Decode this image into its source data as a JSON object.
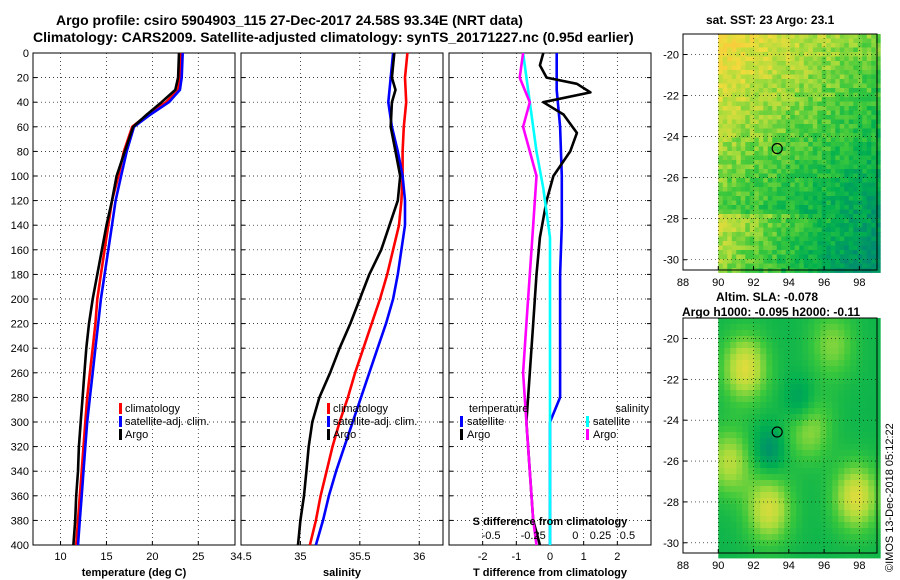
{
  "header": {
    "title_line1": "Argo profile: csiro 5904903_115 27-Dec-2017 24.58S 93.34E (NRT data)",
    "title_line2": "Climatology: CARS2009. Satellite-adjusted climatology: synTS_20171227.nc (0.95d earlier)"
  },
  "colors": {
    "climatology": "#ff0000",
    "satellite": "#0000ff",
    "argo": "#000000",
    "sal_satellite": "#00ffff",
    "sal_argo": "#ff00ff"
  },
  "chart_data": [
    {
      "id": "temperature",
      "type": "line",
      "xlabel": "temperature (deg C)",
      "xlim": [
        7,
        29
      ],
      "xticks": [
        10,
        15,
        20,
        25
      ],
      "xtick_labels": [
        "10",
        "15",
        "20",
        "25"
      ],
      "ylim": [
        0,
        400
      ],
      "yticks": [
        0,
        20,
        40,
        60,
        80,
        100,
        120,
        140,
        160,
        180,
        200,
        220,
        240,
        260,
        280,
        300,
        320,
        340,
        360,
        380,
        400
      ],
      "grid": true,
      "legend": [
        "climatology",
        "satellite-adj. clim.",
        "Argo"
      ],
      "legend_placement": "bottom-right",
      "series": [
        {
          "name": "climatology",
          "color_key": "climatology",
          "points": [
            [
              23.1,
              0
            ],
            [
              23.0,
              20
            ],
            [
              22.8,
              30
            ],
            [
              21.5,
              40
            ],
            [
              19.5,
              50
            ],
            [
              17.8,
              60
            ],
            [
              16.9,
              80
            ],
            [
              16.3,
              100
            ],
            [
              15.6,
              120
            ],
            [
              15.2,
              140
            ],
            [
              14.8,
              160
            ],
            [
              14.4,
              180
            ],
            [
              14.0,
              200
            ],
            [
              13.8,
              220
            ],
            [
              13.5,
              240
            ],
            [
              13.2,
              260
            ],
            [
              12.9,
              280
            ],
            [
              12.7,
              300
            ],
            [
              12.5,
              320
            ],
            [
              12.3,
              340
            ],
            [
              12.1,
              360
            ],
            [
              11.9,
              380
            ],
            [
              11.7,
              400
            ]
          ]
        },
        {
          "name": "satellite-adj. clim.",
          "color_key": "satellite",
          "points": [
            [
              23.3,
              0
            ],
            [
              23.2,
              20
            ],
            [
              23.0,
              30
            ],
            [
              21.8,
              40
            ],
            [
              19.8,
              50
            ],
            [
              18.0,
              60
            ],
            [
              17.2,
              80
            ],
            [
              16.6,
              100
            ],
            [
              16.0,
              120
            ],
            [
              15.6,
              140
            ],
            [
              15.2,
              160
            ],
            [
              14.8,
              180
            ],
            [
              14.4,
              200
            ],
            [
              14.1,
              220
            ],
            [
              13.8,
              240
            ],
            [
              13.5,
              260
            ],
            [
              13.2,
              280
            ],
            [
              12.9,
              300
            ],
            [
              12.7,
              320
            ],
            [
              12.5,
              340
            ],
            [
              12.3,
              360
            ],
            [
              12.1,
              380
            ],
            [
              11.9,
              400
            ]
          ]
        },
        {
          "name": "Argo",
          "color_key": "argo",
          "points": [
            [
              22.9,
              0
            ],
            [
              22.8,
              20
            ],
            [
              22.5,
              30
            ],
            [
              21.0,
              40
            ],
            [
              19.4,
              50
            ],
            [
              17.9,
              60
            ],
            [
              17.0,
              80
            ],
            [
              16.1,
              100
            ],
            [
              15.6,
              120
            ],
            [
              15.0,
              140
            ],
            [
              14.5,
              160
            ],
            [
              14.0,
              180
            ],
            [
              13.5,
              200
            ],
            [
              13.1,
              220
            ],
            [
              12.8,
              240
            ],
            [
              12.6,
              260
            ],
            [
              12.4,
              280
            ],
            [
              12.2,
              300
            ],
            [
              12.0,
              320
            ],
            [
              11.9,
              340
            ],
            [
              11.7,
              360
            ],
            [
              11.6,
              380
            ],
            [
              11.4,
              400
            ]
          ]
        }
      ]
    },
    {
      "id": "salinity",
      "type": "line",
      "xlabel": "salinity",
      "xlim": [
        34.5,
        36.2
      ],
      "xticks": [
        34.5,
        35,
        35.5,
        36
      ],
      "xtick_labels": [
        "34.5",
        "35",
        "35.5",
        "36"
      ],
      "ylim": [
        0,
        400
      ],
      "yticks": [
        0,
        20,
        40,
        60,
        80,
        100,
        120,
        140,
        160,
        180,
        200,
        220,
        240,
        260,
        280,
        300,
        320,
        340,
        360,
        380,
        400
      ],
      "grid": true,
      "legend": [
        "climatology",
        "satellite-adj. clim.",
        "Argo"
      ],
      "legend_placement": "bottom-right",
      "series": [
        {
          "name": "climatology",
          "color_key": "climatology",
          "points": [
            [
              35.9,
              0
            ],
            [
              35.88,
              20
            ],
            [
              35.89,
              40
            ],
            [
              35.87,
              60
            ],
            [
              35.86,
              80
            ],
            [
              35.86,
              100
            ],
            [
              35.85,
              120
            ],
            [
              35.83,
              140
            ],
            [
              35.78,
              160
            ],
            [
              35.73,
              180
            ],
            [
              35.67,
              200
            ],
            [
              35.6,
              220
            ],
            [
              35.53,
              240
            ],
            [
              35.46,
              260
            ],
            [
              35.4,
              280
            ],
            [
              35.33,
              300
            ],
            [
              35.27,
              320
            ],
            [
              35.22,
              340
            ],
            [
              35.17,
              360
            ],
            [
              35.13,
              380
            ],
            [
              35.08,
              400
            ]
          ]
        },
        {
          "name": "satellite-adj. clim.",
          "color_key": "satellite",
          "points": [
            [
              35.78,
              0
            ],
            [
              35.76,
              20
            ],
            [
              35.74,
              40
            ],
            [
              35.77,
              60
            ],
            [
              35.82,
              80
            ],
            [
              35.86,
              100
            ],
            [
              35.88,
              120
            ],
            [
              35.88,
              140
            ],
            [
              35.85,
              160
            ],
            [
              35.82,
              180
            ],
            [
              35.78,
              200
            ],
            [
              35.72,
              220
            ],
            [
              35.65,
              240
            ],
            [
              35.58,
              260
            ],
            [
              35.51,
              280
            ],
            [
              35.44,
              300
            ],
            [
              35.37,
              320
            ],
            [
              35.3,
              340
            ],
            [
              35.24,
              360
            ],
            [
              35.19,
              380
            ],
            [
              35.13,
              400
            ]
          ]
        },
        {
          "name": "Argo",
          "color_key": "argo",
          "points": [
            [
              35.79,
              0
            ],
            [
              35.77,
              20
            ],
            [
              35.8,
              30
            ],
            [
              35.77,
              40
            ],
            [
              35.76,
              60
            ],
            [
              35.8,
              80
            ],
            [
              35.84,
              100
            ],
            [
              35.82,
              120
            ],
            [
              35.75,
              140
            ],
            [
              35.68,
              160
            ],
            [
              35.58,
              180
            ],
            [
              35.5,
              200
            ],
            [
              35.42,
              220
            ],
            [
              35.33,
              240
            ],
            [
              35.25,
              260
            ],
            [
              35.16,
              280
            ],
            [
              35.1,
              300
            ],
            [
              35.07,
              320
            ],
            [
              35.05,
              340
            ],
            [
              35.03,
              360
            ],
            [
              35.0,
              380
            ],
            [
              34.98,
              400
            ]
          ]
        }
      ]
    },
    {
      "id": "difference",
      "type": "line",
      "xlabel": "T difference from climatology",
      "xlim": [
        -3,
        3
      ],
      "xticks": [
        -2,
        -1,
        0,
        1,
        2
      ],
      "xtick_labels": [
        "-2",
        "-1",
        "0",
        "1",
        "2"
      ],
      "top_axis_label": "S difference from climatology",
      "top_axis_ticks": [
        "-0.5",
        "-0.25",
        "0",
        "0.25",
        "0.5"
      ],
      "ylim": [
        0,
        400
      ],
      "yticks": [
        0,
        20,
        40,
        60,
        80,
        100,
        120,
        140,
        160,
        180,
        200,
        220,
        240,
        260,
        280,
        300,
        320,
        340,
        360,
        380,
        400
      ],
      "grid": true,
      "legend_temperature_title": "temperature",
      "legend_salinity_title": "salinity",
      "legend_temperature": [
        "satellite",
        "Argo"
      ],
      "legend_salinity": [
        "satellite",
        "Argo"
      ],
      "series": [
        {
          "name": "temperature satellite",
          "color_key": "satellite",
          "points": [
            [
              0.2,
              0
            ],
            [
              0.2,
              30
            ],
            [
              0.3,
              60
            ],
            [
              0.35,
              100
            ],
            [
              0.35,
              140
            ],
            [
              0.3,
              180
            ],
            [
              0.3,
              220
            ],
            [
              0.3,
              280
            ],
            [
              0.0,
              300
            ],
            [
              0.0,
              330
            ],
            [
              0.0,
              400
            ]
          ]
        },
        {
          "name": "temperature Argo",
          "color_key": "argo",
          "points": [
            [
              -0.2,
              0
            ],
            [
              -0.3,
              10
            ],
            [
              -0.1,
              20
            ],
            [
              0.8,
              25
            ],
            [
              1.2,
              32
            ],
            [
              -0.2,
              40
            ],
            [
              0.4,
              50
            ],
            [
              0.8,
              65
            ],
            [
              0.6,
              80
            ],
            [
              0.1,
              100
            ],
            [
              -0.1,
              120
            ],
            [
              -0.3,
              150
            ],
            [
              -0.4,
              180
            ],
            [
              -0.5,
              220
            ],
            [
              -0.6,
              260
            ],
            [
              -0.7,
              300
            ],
            [
              -0.6,
              340
            ],
            [
              -0.5,
              380
            ],
            [
              -0.3,
              400
            ]
          ]
        },
        {
          "name": "salinity satellite",
          "color_key": "sal_satellite",
          "points": [
            [
              -0.8,
              0
            ],
            [
              -0.6,
              40
            ],
            [
              -0.4,
              80
            ],
            [
              -0.2,
              110
            ],
            [
              0.0,
              150
            ],
            [
              0.0,
              200
            ],
            [
              0.0,
              250
            ],
            [
              0.0,
              300
            ],
            [
              0.0,
              350
            ],
            [
              0.0,
              400
            ]
          ]
        },
        {
          "name": "salinity Argo",
          "color_key": "sal_argo",
          "points": [
            [
              -0.8,
              0
            ],
            [
              -0.9,
              20
            ],
            [
              -0.6,
              40
            ],
            [
              -0.8,
              60
            ],
            [
              -0.6,
              80
            ],
            [
              -0.4,
              100
            ],
            [
              -0.5,
              140
            ],
            [
              -0.6,
              180
            ],
            [
              -0.7,
              220
            ],
            [
              -0.8,
              260
            ],
            [
              -0.7,
              300
            ],
            [
              -0.6,
              340
            ],
            [
              -0.5,
              380
            ],
            [
              -0.4,
              400
            ]
          ]
        }
      ]
    },
    {
      "id": "sst_map",
      "type": "heatmap",
      "title": "sat. SST: 23 Argo: 23.1",
      "xlim": [
        88,
        99
      ],
      "ylim": [
        -30.5,
        -19
      ],
      "xticks": [
        88,
        90,
        92,
        94,
        96,
        98
      ],
      "xtick_labels": [
        "88",
        "90",
        "92",
        "94",
        "96",
        "98"
      ],
      "yticks": [
        -20,
        -22,
        -24,
        -26,
        -28,
        -30
      ],
      "ytick_labels": [
        "-20",
        "-22",
        "-24",
        "-26",
        "-28",
        "-30"
      ],
      "data_xlim": [
        90,
        99
      ],
      "marker": [
        93.34,
        -24.58
      ],
      "grid": true
    },
    {
      "id": "sla_map",
      "type": "heatmap",
      "title_line1": "Altim. SLA: -0.078",
      "title_line2": "Argo h1000: -0.095 h2000: -0.11",
      "xlim": [
        88,
        99
      ],
      "ylim": [
        -30.5,
        -19
      ],
      "xticks": [
        88,
        90,
        92,
        94,
        96,
        98
      ],
      "xtick_labels": [
        "88",
        "90",
        "92",
        "94",
        "96",
        "98"
      ],
      "yticks": [
        -20,
        -22,
        -24,
        -26,
        -28,
        -30
      ],
      "ytick_labels": [
        "-20",
        "-22",
        "-24",
        "-26",
        "-28",
        "-30"
      ],
      "data_xlim": [
        90,
        99
      ],
      "marker": [
        93.34,
        -24.58
      ],
      "grid": true
    }
  ],
  "credit": "©IMOS 13-Dec-2018 05:12:22"
}
